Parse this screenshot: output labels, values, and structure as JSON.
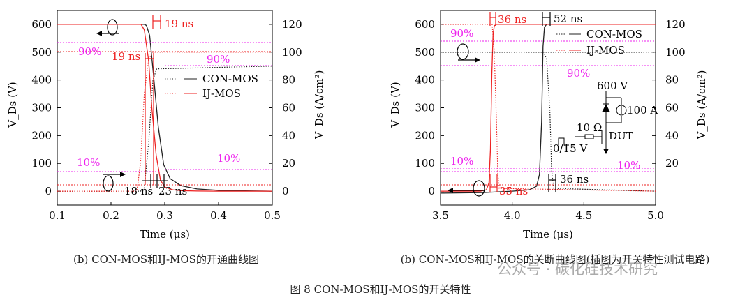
{
  "colors": {
    "con": "#222222",
    "ij": "#ee2222",
    "pct": "#ee22ee",
    "axis": "#000000"
  },
  "chart_data": [
    {
      "type": "line",
      "caption": "(b) CON-MOS和IJ-MOS的开通曲线图",
      "xlabel": "Time (μs)",
      "ylabel_left": "V_Ds (V)",
      "ylabel_right": "V_Ds (A/cm²)",
      "xlim": [
        0.1,
        0.5
      ],
      "ylim": [
        -50,
        650
      ],
      "ylim_right": [
        -10,
        130
      ],
      "xticks": [
        "0.1",
        "0.2",
        "0.3",
        "0.4",
        "0.5"
      ],
      "yticks": [
        "0",
        "100",
        "200",
        "300",
        "400",
        "500",
        "600"
      ],
      "yticks_right": [
        "0",
        "20",
        "40",
        "60",
        "80",
        "100",
        "120"
      ],
      "legend": {
        "position": "right-middle",
        "entries": [
          {
            "name": "CON-MOS"
          },
          {
            "name": "IJ-MOS"
          }
        ]
      },
      "series": [
        {
          "name": "CON-MOS",
          "kind": "voltage",
          "style": "solid",
          "x": [
            0.1,
            0.262,
            0.266,
            0.272,
            0.279,
            0.288,
            0.298,
            0.31,
            0.33,
            0.36,
            0.4,
            0.45,
            0.5
          ],
          "y": [
            600,
            600,
            596,
            560,
            420,
            230,
            95,
            45,
            20,
            8,
            3,
            1,
            0
          ]
        },
        {
          "name": "IJ-MOS",
          "kind": "voltage",
          "style": "solid",
          "x": [
            0.1,
            0.256,
            0.262,
            0.27,
            0.276,
            0.284,
            0.292,
            0.3,
            0.315,
            0.33,
            0.36,
            0.4,
            0.5
          ],
          "y": [
            600,
            600,
            580,
            470,
            300,
            130,
            40,
            15,
            5,
            2,
            0.5,
            0,
            0
          ]
        },
        {
          "name": "CON-MOS",
          "kind": "current",
          "style": "dotted",
          "x": [
            0.1,
            0.255,
            0.262,
            0.27,
            0.278,
            0.285,
            0.5
          ],
          "y": [
            0,
            0,
            2,
            35,
            80,
            88,
            90
          ]
        },
        {
          "name": "IJ-MOS",
          "kind": "current",
          "style": "dotted",
          "x": [
            0.1,
            0.248,
            0.255,
            0.262,
            0.27,
            0.278,
            0.5
          ],
          "y": [
            0,
            0,
            20,
            70,
            95,
            100,
            100
          ]
        }
      ],
      "annotations": [
        "19 ns",
        "19 ns",
        "18 ns",
        "23 ns",
        "90%",
        "90%",
        "10%",
        "10%"
      ]
    },
    {
      "type": "line",
      "caption": "(b) CON-MOS和IJ-MOS的关断曲线图(插图为开关特性测试电路)",
      "xlabel": "Time (μs)",
      "ylabel_left": "V_Ds (V)",
      "ylabel_right": "V_Ds (A/cm²)",
      "xlim": [
        3.5,
        5.0
      ],
      "ylim": [
        -50,
        650
      ],
      "ylim_right": [
        -10,
        130
      ],
      "xticks": [
        "3.5",
        "4.0",
        "4.5",
        "5.0"
      ],
      "yticks": [
        "0",
        "100",
        "200",
        "300",
        "400",
        "500",
        "600"
      ],
      "yticks_right": [
        "20",
        "40",
        "60",
        "80",
        "100",
        "120"
      ],
      "legend": {
        "position": "top-right",
        "entries": [
          {
            "name": "CON-MOS"
          },
          {
            "name": "IJ-MOS"
          }
        ]
      },
      "series": [
        {
          "name": "CON-MOS",
          "kind": "voltage",
          "style": "solid",
          "x": [
            3.5,
            3.8,
            4.0,
            4.12,
            4.17,
            4.19,
            4.205,
            4.215,
            4.225,
            4.24,
            5.0
          ],
          "y": [
            -7,
            -5,
            0,
            5,
            18,
            60,
            250,
            520,
            590,
            600,
            600
          ]
        },
        {
          "name": "IJ-MOS",
          "kind": "voltage",
          "style": "solid",
          "x": [
            3.5,
            3.78,
            3.82,
            3.838,
            3.848,
            3.858,
            3.866,
            3.875,
            3.89,
            5.0
          ],
          "y": [
            0,
            0,
            5,
            30,
            150,
            420,
            560,
            595,
            600,
            600
          ]
        },
        {
          "name": "CON-MOS",
          "kind": "current",
          "style": "dotted",
          "x": [
            3.5,
            4.22,
            4.24,
            4.262,
            4.275,
            4.29,
            5.0
          ],
          "y": [
            100,
            100,
            95,
            60,
            15,
            2,
            0
          ]
        },
        {
          "name": "IJ-MOS",
          "kind": "current",
          "style": "dotted",
          "x": [
            3.5,
            3.86,
            3.875,
            3.89,
            3.9,
            3.91,
            5.0
          ],
          "y": [
            120,
            120,
            100,
            50,
            12,
            2,
            0
          ]
        }
      ],
      "annotations": [
        "36 ns",
        "52 ns",
        "90%",
        "90%",
        "10%",
        "10%",
        "35 ns",
        "36 ns"
      ],
      "inset": {
        "labels": [
          "600 V",
          "100 A",
          "10 Ω",
          "DUT",
          "0/15 V"
        ]
      }
    }
  ],
  "figure": {
    "caption": "图 8 CON-MOS和IJ-MOS的开关特性",
    "watermark": "公众号 · 碳化硅技术研究"
  }
}
